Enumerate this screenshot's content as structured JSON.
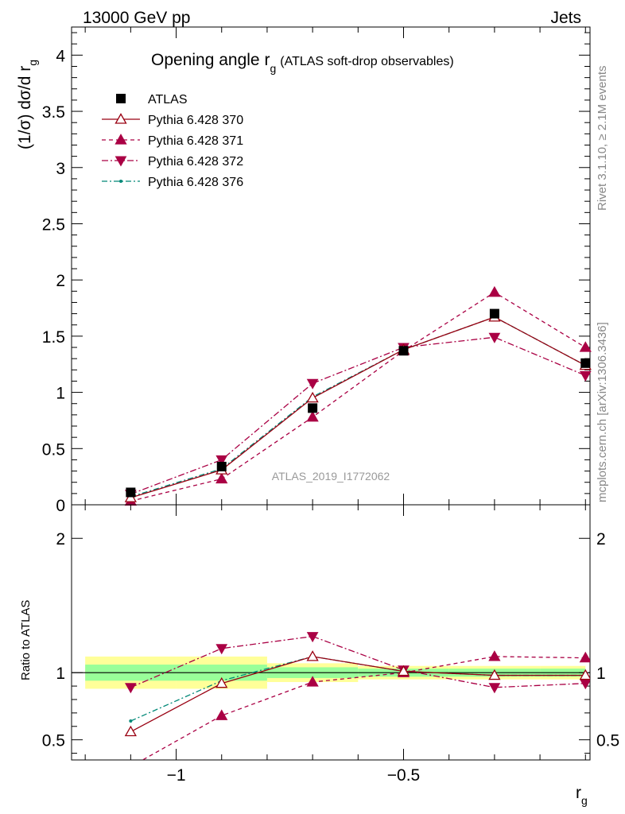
{
  "header": {
    "left_label": "13000 GeV pp",
    "right_label": "Jets",
    "side_label_top": "Rivet 3.1.10, ≥ 2.1M events",
    "side_label_bottom": "mcplots.cern.ch [arXiv:1306.3436]",
    "watermark": "ATLAS_2019_I1772062"
  },
  "colors": {
    "data": "#000000",
    "pythia_370": "#990011",
    "pythia_371": "#aa0044",
    "pythia_372": "#aa0044",
    "pythia_376": "#008877",
    "band_inner": "#99ff99",
    "band_outer": "#ffff99"
  },
  "chart_data": [
    {
      "type": "line",
      "title": "Opening angle r",
      "title_sub": "g",
      "title_suffix": "(ATLAS soft-drop observables)",
      "ylabel": "(1/σ) dσ/d r",
      "ylabel_sub": "g",
      "xlim": [
        -1.23,
        -0.09
      ],
      "ylim": [
        0,
        4.25
      ],
      "yticks": [
        0,
        0.5,
        1,
        1.5,
        2,
        2.5,
        3,
        3.5,
        4
      ],
      "ytick_labels": [
        "0",
        "0.5",
        "1",
        "1.5",
        "2",
        "2.5",
        "3",
        "3.5",
        "4"
      ],
      "legend_position": "top-left",
      "x": [
        -1.1,
        -0.9,
        -0.7,
        -0.5,
        -0.3,
        -0.1
      ],
      "series": [
        {
          "name": "ATLAS",
          "values": [
            0.11,
            0.34,
            0.86,
            1.37,
            1.7,
            1.26
          ]
        },
        {
          "name": "Pythia 6.428 370",
          "values": [
            0.063,
            0.31,
            0.95,
            1.38,
            1.67,
            1.24
          ]
        },
        {
          "name": "Pythia 6.428 371",
          "values": [
            0.033,
            0.23,
            0.78,
            1.37,
            1.89,
            1.4
          ]
        },
        {
          "name": "Pythia 6.428 372",
          "values": [
            0.095,
            0.4,
            1.08,
            1.4,
            1.49,
            1.15
          ]
        },
        {
          "name": "Pythia 6.428 376",
          "values": [
            0.071,
            0.32,
            0.96,
            1.38,
            1.67,
            1.24
          ]
        }
      ]
    },
    {
      "type": "line",
      "ylabel": "Ratio to ATLAS",
      "xlabel": "r",
      "xlabel_sub": "g",
      "xlim": [
        -1.23,
        -0.09
      ],
      "ylim": [
        0.35,
        2.25
      ],
      "yticks": [
        0.5,
        1,
        2
      ],
      "ytick_labels": [
        "0.5",
        "1",
        "2"
      ],
      "xticks": [
        -1,
        -0.5
      ],
      "xtick_labels": [
        "−1",
        "−0.5"
      ],
      "x": [
        -1.1,
        -0.9,
        -0.7,
        -0.5,
        -0.3,
        -0.1
      ],
      "bin_edges": [
        -1.2,
        -1.0,
        -0.8,
        -0.6,
        -0.4,
        -0.2,
        -0.1
      ],
      "band_inner": [
        0.06,
        0.06,
        0.04,
        0.03,
        0.03,
        0.03
      ],
      "band_outer": [
        0.12,
        0.12,
        0.07,
        0.05,
        0.05,
        0.05
      ],
      "series": [
        {
          "name": "Pythia 6.428 370",
          "values": [
            0.56,
            0.92,
            1.12,
            1.01,
            0.98,
            0.98
          ]
        },
        {
          "name": "Pythia 6.428 371",
          "values": [
            0.3,
            0.68,
            0.93,
            1.0,
            1.12,
            1.11
          ]
        },
        {
          "name": "Pythia 6.428 372",
          "values": [
            0.89,
            1.18,
            1.27,
            1.02,
            0.89,
            0.92
          ]
        },
        {
          "name": "Pythia 6.428 376",
          "values": [
            0.64,
            0.94,
            1.12,
            1.01,
            0.98,
            0.98
          ]
        }
      ]
    }
  ]
}
